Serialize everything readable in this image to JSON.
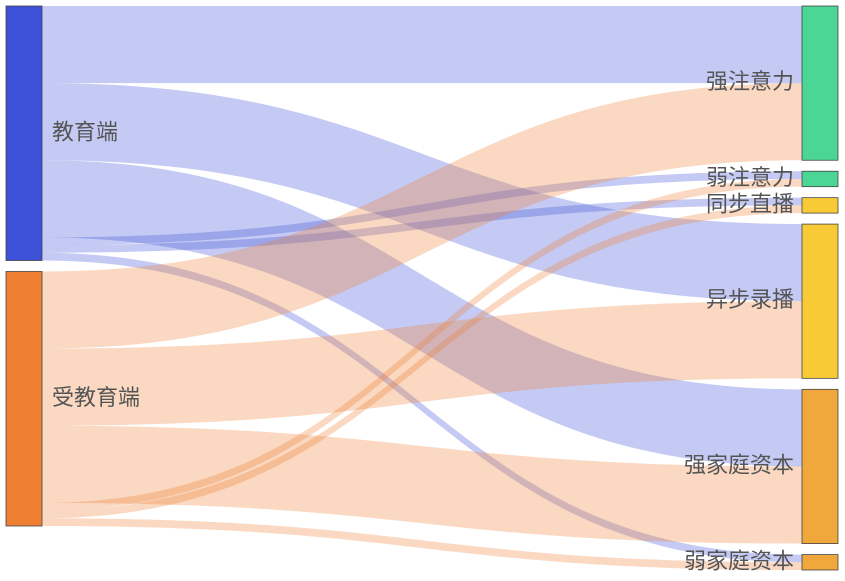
{
  "chart_data": {
    "type": "sankey",
    "nodes": [
      {
        "name": "教育端",
        "color": "#3c50d8"
      },
      {
        "name": "受教育端",
        "color": "#ef7f32"
      },
      {
        "name": "强注意力",
        "color": "#4cd696"
      },
      {
        "name": "弱注意力",
        "color": "#4cd696"
      },
      {
        "name": "同步直播",
        "color": "#f8cb36"
      },
      {
        "name": "异步录播",
        "color": "#f8cb36"
      },
      {
        "name": "强家庭资本",
        "color": "#f0a83c"
      },
      {
        "name": "弱家庭资本",
        "color": "#f0a83c"
      }
    ],
    "links": [
      {
        "source": "教育端",
        "target": "强注意力",
        "value": 50
      },
      {
        "source": "教育端",
        "target": "异步录播",
        "value": 50
      },
      {
        "source": "教育端",
        "target": "强家庭资本",
        "value": 50
      },
      {
        "source": "教育端",
        "target": "弱注意力",
        "value": 5
      },
      {
        "source": "教育端",
        "target": "同步直播",
        "value": 5
      },
      {
        "source": "教育端",
        "target": "弱家庭资本",
        "value": 5
      },
      {
        "source": "受教育端",
        "target": "强注意力",
        "value": 50
      },
      {
        "source": "受教育端",
        "target": "异步录播",
        "value": 50
      },
      {
        "source": "受教育端",
        "target": "强家庭资本",
        "value": 50
      },
      {
        "source": "受教育端",
        "target": "弱注意力",
        "value": 5
      },
      {
        "source": "受教育端",
        "target": "同步直播",
        "value": 5
      },
      {
        "source": "受教育端",
        "target": "弱家庭资本",
        "value": 5
      }
    ],
    "link_opacity": 0.3
  }
}
